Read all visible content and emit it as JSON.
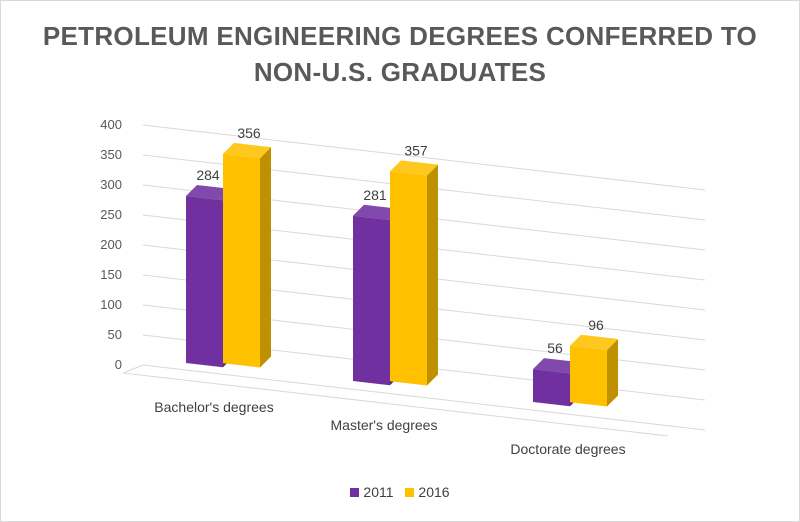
{
  "chart_data": {
    "type": "bar",
    "title_lines": [
      "PETROLEUM ENGINEERING DEGREES CONFERRED TO",
      "NON-U.S. GRADUATES"
    ],
    "categories": [
      "Bachelor's degrees",
      "Master's degrees",
      "Doctorate degrees"
    ],
    "series": [
      {
        "name": "2011",
        "values": [
          284,
          281,
          56
        ],
        "color": "#7030A0"
      },
      {
        "name": "2016",
        "values": [
          356,
          357,
          96
        ],
        "color": "#FFC000"
      }
    ],
    "yticks": [
      "0",
      "50",
      "100",
      "150",
      "200",
      "250",
      "300",
      "350",
      "400"
    ],
    "ylim": [
      0,
      400
    ],
    "grid": true,
    "legend_position": "bottom",
    "style": "3d-clustered-column"
  }
}
